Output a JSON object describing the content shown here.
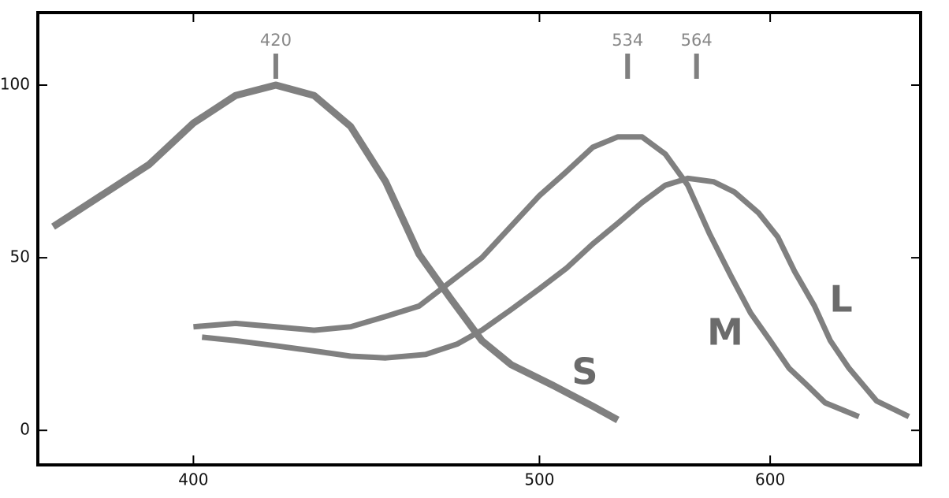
{
  "chart_data": {
    "type": "line",
    "xscale": "reciprocal",
    "xlim": [
      367,
      690
    ],
    "ylim": [
      -10,
      121
    ],
    "xticks": [
      400,
      500,
      600
    ],
    "yticks": [
      0,
      50,
      100
    ],
    "peaks": [
      420,
      534,
      564
    ],
    "series": [
      {
        "name": "S",
        "color": "#808080",
        "x": [
          370,
          390,
          400,
          410,
          420,
          430,
          440,
          450,
          460,
          470,
          480,
          490,
          505,
          520,
          530
        ],
        "values": [
          59,
          77,
          89,
          97,
          100,
          97,
          88,
          72,
          51,
          38,
          26,
          19,
          13,
          7,
          3
        ]
      },
      {
        "name": "M",
        "color": "#808080",
        "x": [
          400,
          410,
          420,
          430,
          440,
          450,
          460,
          480,
          500,
          510,
          520,
          530,
          540,
          550,
          560,
          570,
          580,
          590,
          600,
          610,
          620,
          630,
          650
        ],
        "values": [
          30,
          31,
          30,
          29,
          30,
          33,
          36,
          50,
          68,
          75,
          82,
          85,
          85,
          80,
          71,
          57,
          45,
          34,
          26,
          18,
          13,
          8,
          4
        ]
      },
      {
        "name": "L",
        "color": "#808080",
        "x": [
          402,
          410,
          420,
          430,
          440,
          450,
          462,
          472,
          480,
          490,
          500,
          510,
          520,
          530,
          540,
          550,
          560,
          572,
          582,
          594,
          604,
          613,
          624,
          633,
          644,
          661,
          682
        ],
        "values": [
          27,
          26,
          24.5,
          23,
          21.5,
          21,
          22,
          25,
          29,
          35,
          41,
          47,
          54,
          60,
          66,
          71,
          73,
          72,
          69,
          63,
          56,
          46,
          36,
          26,
          18,
          8.5,
          4
        ]
      }
    ]
  }
}
